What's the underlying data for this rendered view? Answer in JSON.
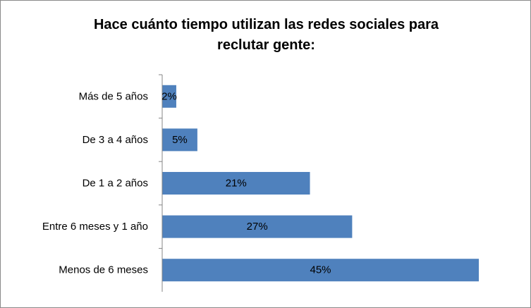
{
  "chart_data": {
    "type": "bar",
    "orientation": "horizontal",
    "title": "Hace cuánto tiempo utilizan las redes sociales para\nreclutar gente:",
    "categories": [
      "Menos de 6 meses",
      "Entre 6 meses y 1 año",
      "De 1 a 2 años",
      "De 3 a 4 años",
      "Más de 5 años"
    ],
    "values": [
      45,
      27,
      21,
      5,
      2
    ],
    "value_labels": [
      "45%",
      "27%",
      "21%",
      "5%",
      "2%"
    ],
    "unit": "%",
    "xlim": [
      0,
      45
    ],
    "grid": false,
    "legend": "none",
    "bar_color": "#4f81bd"
  }
}
